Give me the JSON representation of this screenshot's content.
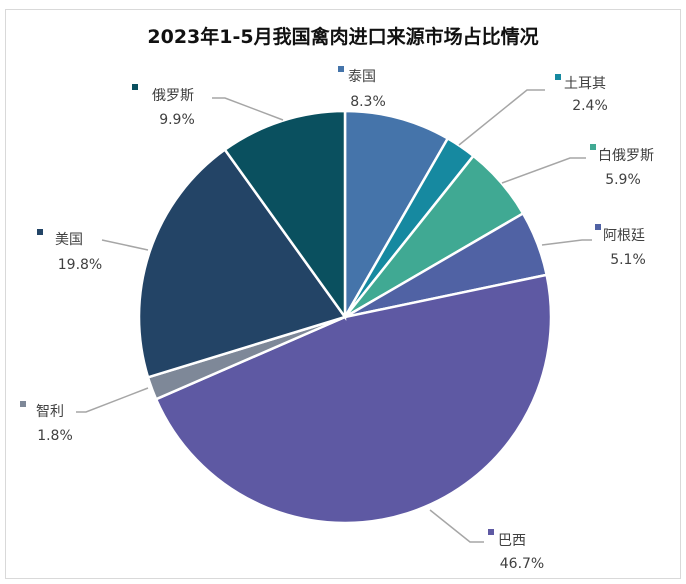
{
  "chart_data": {
    "type": "pie",
    "title": "2023年1-5月我国禽肉进口来源市场占比情况",
    "start_angle": "12 o'clock",
    "direction": "clockwise",
    "slices": [
      {
        "label": "泰国",
        "value": 8.3,
        "value_label": "8.3%",
        "color": "#4574aa"
      },
      {
        "label": "土耳其",
        "value": 2.4,
        "value_label": "2.4%",
        "color": "#1689a0"
      },
      {
        "label": "白俄罗斯",
        "value": 5.9,
        "value_label": "5.9%",
        "color": "#40a993"
      },
      {
        "label": "阿根廷",
        "value": 5.1,
        "value_label": "5.1%",
        "color": "#5062a4"
      },
      {
        "label": "巴西",
        "value": 46.7,
        "value_label": "46.7%",
        "color": "#5e59a3"
      },
      {
        "label": "智利",
        "value": 1.8,
        "value_label": "1.8%",
        "color": "#7e8898"
      },
      {
        "label": "美国",
        "value": 19.8,
        "value_label": "19.8%",
        "color": "#234466"
      },
      {
        "label": "俄罗斯",
        "value": 9.9,
        "value_label": "9.9%",
        "color": "#0a505f"
      }
    ]
  }
}
